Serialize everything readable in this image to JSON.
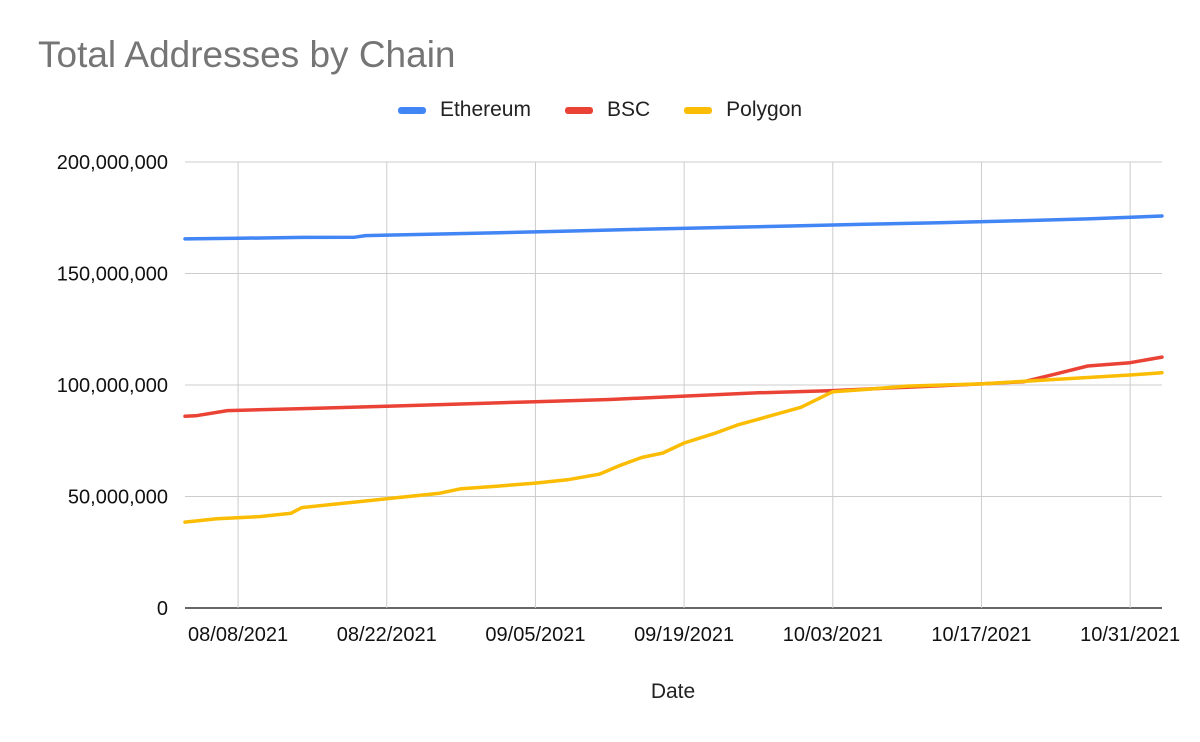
{
  "chart_data": {
    "type": "line",
    "title": "Total Addresses by Chain",
    "xlabel": "Date",
    "ylabel": "",
    "ylim": [
      0,
      200000000
    ],
    "yticks": [
      0,
      50000000,
      100000000,
      150000000,
      200000000
    ],
    "ytick_labels": [
      "0",
      "50,000,000",
      "100,000,000",
      "150,000,000",
      "200,000,000"
    ],
    "xlim": [
      "2021-08-03",
      "2021-11-03"
    ],
    "xticks": [
      "2021-08-08",
      "2021-08-22",
      "2021-09-05",
      "2021-09-19",
      "2021-10-03",
      "2021-10-17",
      "2021-10-31"
    ],
    "xtick_labels": [
      "08/08/2021",
      "08/22/2021",
      "09/05/2021",
      "09/19/2021",
      "10/03/2021",
      "10/17/2021",
      "10/31/2021"
    ],
    "grid": true,
    "legend_position": "top-center",
    "series": [
      {
        "name": "Ethereum",
        "color": "#4285F4",
        "points": [
          [
            "2021-08-03",
            165500000
          ],
          [
            "2021-08-08",
            165800000
          ],
          [
            "2021-08-14",
            166200000
          ],
          [
            "2021-08-19",
            166300000
          ],
          [
            "2021-08-20",
            167000000
          ],
          [
            "2021-08-26",
            167600000
          ],
          [
            "2021-09-01",
            168200000
          ],
          [
            "2021-09-08",
            169000000
          ],
          [
            "2021-09-15",
            169800000
          ],
          [
            "2021-09-22",
            170600000
          ],
          [
            "2021-09-29",
            171300000
          ],
          [
            "2021-10-06",
            172100000
          ],
          [
            "2021-10-13",
            172800000
          ],
          [
            "2021-10-20",
            173600000
          ],
          [
            "2021-10-27",
            174500000
          ],
          [
            "2021-11-03",
            175800000
          ]
        ]
      },
      {
        "name": "BSC",
        "color": "#EA4335",
        "points": [
          [
            "2021-08-03",
            86000000
          ],
          [
            "2021-08-04",
            86200000
          ],
          [
            "2021-08-07",
            88500000
          ],
          [
            "2021-08-15",
            89500000
          ],
          [
            "2021-08-22",
            90500000
          ],
          [
            "2021-08-29",
            91500000
          ],
          [
            "2021-09-05",
            92500000
          ],
          [
            "2021-09-12",
            93500000
          ],
          [
            "2021-09-19",
            95000000
          ],
          [
            "2021-09-26",
            96500000
          ],
          [
            "2021-10-03",
            97500000
          ],
          [
            "2021-10-10",
            99000000
          ],
          [
            "2021-10-17",
            100500000
          ],
          [
            "2021-10-21",
            101500000
          ],
          [
            "2021-10-24",
            105000000
          ],
          [
            "2021-10-27",
            108500000
          ],
          [
            "2021-10-31",
            110000000
          ],
          [
            "2021-11-03",
            112500000
          ]
        ]
      },
      {
        "name": "Polygon",
        "color": "#FBBC04",
        "points": [
          [
            "2021-08-03",
            38500000
          ],
          [
            "2021-08-06",
            40000000
          ],
          [
            "2021-08-10",
            41000000
          ],
          [
            "2021-08-13",
            42500000
          ],
          [
            "2021-08-14",
            45000000
          ],
          [
            "2021-08-17",
            46500000
          ],
          [
            "2021-08-20",
            48000000
          ],
          [
            "2021-08-23",
            49500000
          ],
          [
            "2021-08-27",
            51500000
          ],
          [
            "2021-08-29",
            53500000
          ],
          [
            "2021-09-01",
            54500000
          ],
          [
            "2021-09-05",
            56000000
          ],
          [
            "2021-09-08",
            57500000
          ],
          [
            "2021-09-11",
            60000000
          ],
          [
            "2021-09-13",
            64000000
          ],
          [
            "2021-09-15",
            67500000
          ],
          [
            "2021-09-17",
            69500000
          ],
          [
            "2021-09-19",
            74000000
          ],
          [
            "2021-09-22",
            78500000
          ],
          [
            "2021-09-24",
            82000000
          ],
          [
            "2021-09-27",
            86000000
          ],
          [
            "2021-09-30",
            90000000
          ],
          [
            "2021-10-03",
            97000000
          ],
          [
            "2021-10-06",
            98000000
          ],
          [
            "2021-10-10",
            99500000
          ],
          [
            "2021-10-17",
            100500000
          ],
          [
            "2021-10-24",
            102500000
          ],
          [
            "2021-10-31",
            104500000
          ],
          [
            "2021-11-03",
            105500000
          ]
        ]
      }
    ]
  }
}
